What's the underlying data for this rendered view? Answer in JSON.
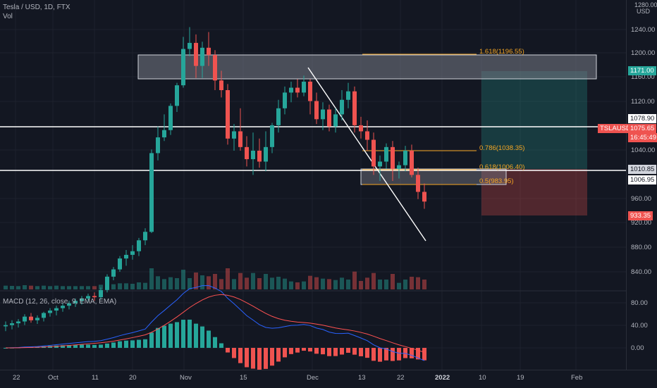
{
  "header": {
    "symbol": "Tesla / USD, 1D, FTX",
    "volume_label": "Vol",
    "currency": "USD"
  },
  "price_axis": {
    "ticks": [
      "1240.00",
      "1200.00",
      "1160.00",
      "1120.00",
      "1040.00",
      "960.00",
      "920.00",
      "880.00",
      "840.00"
    ],
    "top_partial": "1280.00"
  },
  "price_tags": {
    "t1171": "1171.00",
    "t1078": "1078.90",
    "symbol": "TSLAUSD",
    "last_price": "1075.65",
    "countdown": "16:45:49",
    "t1010": "1010.85",
    "t1006": "1006.95",
    "t933": "933.35"
  },
  "fib_labels": {
    "f1618": "1.618(1196.55)",
    "f0786": "0.786(1038.35)",
    "f0618": "0.618(1006.40)",
    "f05": "0.5(983.95)"
  },
  "macd": {
    "title": "MACD (12, 26, close, 9, EMA, EMA)",
    "ticks": [
      "80.00",
      "40.00",
      "0.00"
    ]
  },
  "time_axis": [
    "22",
    "Oct",
    "11",
    "20",
    "Nov",
    "15",
    "Dec",
    "13",
    "22",
    "2022",
    "10",
    "19",
    "Feb"
  ],
  "colors": {
    "up": "#26a69a",
    "down": "#ef5350",
    "background": "#131722",
    "fib": "#f5a623",
    "macd_line": "#2962ff",
    "signal_line": "#ff5252"
  },
  "chart_data": {
    "type": "candlestick",
    "x": [
      "Sep 22",
      "Sep 23",
      "Sep 24",
      "Sep 27",
      "Sep 28",
      "Sep 29",
      "Sep 30",
      "Oct 1",
      "Oct 4",
      "Oct 5",
      "Oct 6",
      "Oct 7",
      "Oct 8",
      "Oct 11",
      "Oct 12",
      "Oct 13",
      "Oct 14",
      "Oct 15",
      "Oct 18",
      "Oct 19",
      "Oct 20",
      "Oct 21",
      "Oct 22",
      "Oct 25",
      "Oct 26",
      "Oct 27",
      "Oct 28",
      "Oct 29",
      "Nov 1",
      "Nov 2",
      "Nov 3",
      "Nov 4",
      "Nov 5",
      "Nov 8",
      "Nov 9",
      "Nov 10",
      "Nov 11",
      "Nov 12",
      "Nov 15",
      "Nov 16",
      "Nov 17",
      "Nov 18",
      "Nov 19",
      "Nov 22",
      "Nov 23",
      "Nov 24",
      "Nov 26",
      "Nov 29",
      "Nov 30",
      "Dec 1",
      "Dec 2",
      "Dec 3",
      "Dec 6",
      "Dec 7",
      "Dec 8",
      "Dec 9",
      "Dec 10",
      "Dec 13",
      "Dec 14",
      "Dec 15",
      "Dec 16",
      "Dec 17",
      "Dec 20",
      "Dec 21",
      "Dec 22",
      "Dec 23",
      "Dec 27"
    ],
    "candles": [
      [
        750,
        758,
        742,
        752
      ],
      [
        752,
        760,
        745,
        755
      ],
      [
        755,
        762,
        748,
        758
      ],
      [
        758,
        770,
        752,
        766
      ],
      [
        766,
        772,
        756,
        760
      ],
      [
        760,
        768,
        754,
        764
      ],
      [
        764,
        774,
        758,
        772
      ],
      [
        772,
        780,
        766,
        776
      ],
      [
        776,
        784,
        768,
        780
      ],
      [
        780,
        788,
        774,
        784
      ],
      [
        784,
        792,
        778,
        788
      ],
      [
        788,
        796,
        782,
        792
      ],
      [
        792,
        800,
        786,
        796
      ],
      [
        796,
        804,
        790,
        800
      ],
      [
        800,
        806,
        792,
        798
      ],
      [
        798,
        814,
        794,
        810
      ],
      [
        810,
        836,
        806,
        832
      ],
      [
        832,
        848,
        826,
        844
      ],
      [
        844,
        866,
        840,
        862
      ],
      [
        862,
        876,
        850,
        868
      ],
      [
        868,
        884,
        860,
        874
      ],
      [
        874,
        896,
        866,
        892
      ],
      [
        892,
        912,
        884,
        906
      ],
      [
        906,
        1042,
        904,
        1036
      ],
      [
        1036,
        1080,
        1024,
        1062
      ],
      [
        1062,
        1100,
        1056,
        1074
      ],
      [
        1074,
        1118,
        1066,
        1114
      ],
      [
        1114,
        1152,
        1104,
        1148
      ],
      [
        1148,
        1228,
        1144,
        1208
      ],
      [
        1208,
        1244,
        1196,
        1218
      ],
      [
        1218,
        1232,
        1160,
        1180
      ],
      [
        1180,
        1220,
        1160,
        1210
      ],
      [
        1210,
        1236,
        1180,
        1198
      ],
      [
        1198,
        1206,
        1140,
        1156
      ],
      [
        1156,
        1172,
        1128,
        1140
      ],
      [
        1140,
        1150,
        1050,
        1060
      ],
      [
        1060,
        1084,
        1040,
        1072
      ],
      [
        1072,
        1110,
        1040,
        1046
      ],
      [
        1046,
        1064,
        1014,
        1026
      ],
      [
        1026,
        1070,
        1000,
        1040
      ],
      [
        1040,
        1060,
        1012,
        1022
      ],
      [
        1022,
        1072,
        1006,
        1046
      ],
      [
        1046,
        1086,
        1036,
        1082
      ],
      [
        1082,
        1124,
        1070,
        1110
      ],
      [
        1110,
        1146,
        1100,
        1136
      ],
      [
        1136,
        1154,
        1120,
        1144
      ],
      [
        1144,
        1158,
        1128,
        1136
      ],
      [
        1136,
        1164,
        1130,
        1154
      ],
      [
        1154,
        1158,
        1100,
        1122
      ],
      [
        1122,
        1136,
        1084,
        1092
      ],
      [
        1092,
        1120,
        1074,
        1108
      ],
      [
        1108,
        1116,
        1072,
        1080
      ],
      [
        1080,
        1110,
        1070,
        1100
      ],
      [
        1100,
        1140,
        1090,
        1124
      ],
      [
        1124,
        1152,
        1110,
        1138
      ],
      [
        1138,
        1146,
        1070,
        1082
      ],
      [
        1082,
        1096,
        1060,
        1072
      ],
      [
        1072,
        1090,
        1040,
        1058
      ],
      [
        1058,
        1070,
        1000,
        1014
      ],
      [
        1014,
        1032,
        990,
        1022
      ],
      [
        1022,
        1052,
        1010,
        1046
      ],
      [
        1046,
        1056,
        990,
        1010
      ],
      [
        1010,
        1022,
        994,
        1016
      ],
      [
        1016,
        1048,
        1006,
        1040
      ],
      [
        1040,
        1050,
        996,
        1000
      ],
      [
        1000,
        1012,
        960,
        972
      ],
      [
        972,
        986,
        944,
        956
      ]
    ]
  }
}
